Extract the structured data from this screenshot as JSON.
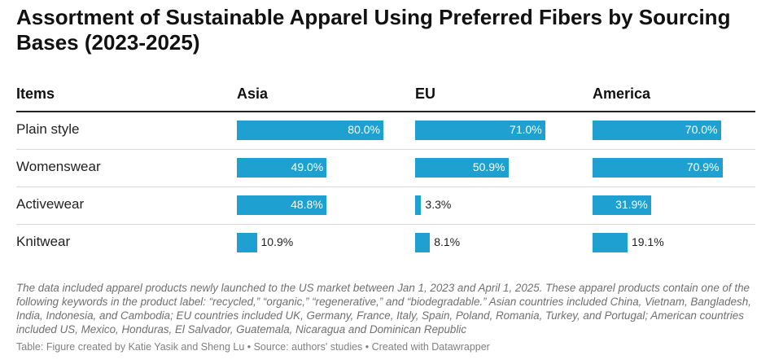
{
  "title": "Assortment of Sustainable Apparel Using Preferred Fibers by Sourcing Bases (2023-2025)",
  "columns": [
    "Items",
    "Asia",
    "EU",
    "America"
  ],
  "notes": "The data included apparel products newly launched to the US market between Jan 1, 2023 and April 1, 2025. These apparel products contain one of the following keywords in the product label: “recycled,” “organic,” “regenerative,” and “biodegradable.” Asian countries included China, Vietnam, Bangladesh, India, Indonesia, and Cambodia; EU countries included UK, Germany, France, Italy, Spain, Poland, Romania, Turkey, and Portugal; American countries included US, Mexico, Honduras, El Salvador, Guatemala, Nicaragua and Dominican Republic",
  "source": "Table: Figure created by Katie Yasik and Sheng Lu • Source: authors' studies • Created with Datawrapper",
  "bar_color": "#1ea1d1",
  "chart_data": {
    "type": "table",
    "title": "Assortment of Sustainable Apparel Using Preferred Fibers by Sourcing Bases (2023-2025)",
    "categories": [
      "Plain style",
      "Womenswear",
      "Activewear",
      "Knitwear"
    ],
    "value_format": "percent",
    "series": [
      {
        "name": "Asia",
        "values": [
          80.0,
          49.0,
          48.8,
          10.9
        ],
        "labels": [
          "80.0%",
          "49.0%",
          "48.8%",
          "10.9%"
        ]
      },
      {
        "name": "EU",
        "values": [
          71.0,
          50.9,
          3.3,
          8.1
        ],
        "labels": [
          "71.0%",
          "50.9%",
          "3.3%",
          "8.1%"
        ]
      },
      {
        "name": "America",
        "values": [
          70.0,
          70.9,
          31.9,
          19.1
        ],
        "labels": [
          "70.0%",
          "70.9%",
          "31.9%",
          "19.1%"
        ]
      }
    ],
    "ylim": [
      0,
      80
    ]
  }
}
